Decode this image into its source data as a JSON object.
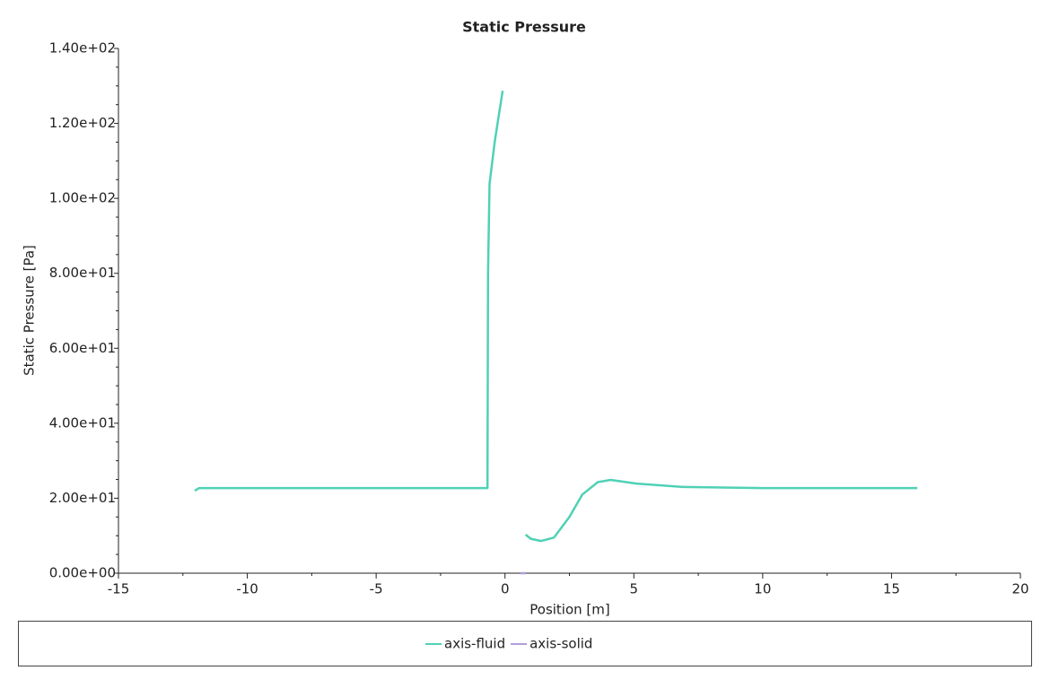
{
  "chart_data": {
    "type": "line",
    "title": "Static Pressure",
    "x_label": "Position [m]",
    "y_label": "Static Pressure [Pa]",
    "xlim": [
      -15,
      20
    ],
    "xticks": [
      -15,
      -10,
      -5,
      0,
      5,
      10,
      15,
      20
    ],
    "ylim": [
      0,
      140
    ],
    "yticks": [
      {
        "value": 0,
        "label": "0.00e+00"
      },
      {
        "value": 20,
        "label": "2.00e+01"
      },
      {
        "value": 40,
        "label": "4.00e+01"
      },
      {
        "value": 60,
        "label": "6.00e+01"
      },
      {
        "value": 80,
        "label": "8.00e+01"
      },
      {
        "value": 100,
        "label": "1.00e+02"
      },
      {
        "value": 120,
        "label": "1.20e+02"
      },
      {
        "value": 140,
        "label": "1.40e+02"
      }
    ],
    "legend": "bottom",
    "series": [
      {
        "name": "axis-fluid",
        "color": "#4fd1b5",
        "x": [
          -12.04,
          -11.87,
          -8,
          -4,
          -1.5,
          -0.68,
          -0.66,
          -0.6,
          -0.4,
          -0.2,
          -0.09,
          null,
          0.8,
          1.0,
          1.4,
          1.9,
          2.5,
          3.0,
          3.6,
          4.1,
          5.1,
          6.9,
          10,
          13,
          16
        ],
        "values": [
          22,
          22.7,
          22.7,
          22.7,
          22.7,
          22.7,
          80,
          103.9,
          115,
          124,
          128.7,
          null,
          10.3,
          9.2,
          8.6,
          9.5,
          15,
          21,
          24.3,
          24.9,
          23.9,
          23,
          22.7,
          22.7,
          22.7
        ]
      },
      {
        "name": "axis-solid",
        "color": "#b39ddb",
        "x": [
          0.6,
          0.8
        ],
        "values": [
          0,
          0
        ]
      }
    ]
  }
}
